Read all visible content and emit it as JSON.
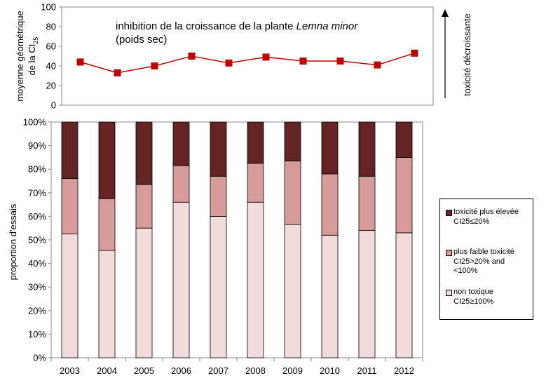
{
  "chart_data": [
    {
      "type": "line",
      "title": "inhibition  de la croissance de la plante",
      "title_italic": "Lemna minor",
      "subtitle": "(poids sec)",
      "ylabel_line1": "moyenne géométrique",
      "ylabel_line2": "de la CI",
      "ylabel_sub": "25",
      "right_label": "toxicité décroissante",
      "ylim": [
        0,
        100
      ],
      "yticks": [
        "0",
        "20",
        "40",
        "60",
        "80",
        "100"
      ],
      "x": [
        "2003",
        "2004",
        "2005",
        "2006",
        "2007",
        "2008",
        "2009",
        "2010",
        "2011",
        "2012"
      ],
      "values": [
        44,
        33,
        40,
        50,
        43,
        49,
        45,
        45,
        41,
        53
      ],
      "color": "#c00000"
    },
    {
      "type": "bar",
      "stacked": true,
      "ylabel": "proportion d'essais",
      "ylim": [
        0,
        100
      ],
      "yticks": [
        "0%",
        "10%",
        "20%",
        "30%",
        "40%",
        "50%",
        "60%",
        "70%",
        "80%",
        "90%",
        "100%"
      ],
      "categories": [
        "2003",
        "2004",
        "2005",
        "2006",
        "2007",
        "2008",
        "2009",
        "2010",
        "2011",
        "2012"
      ],
      "series": [
        {
          "name": "non toxique CI25≥100%",
          "color": "#f2dcdb",
          "values": [
            52.5,
            45.5,
            55,
            66,
            60,
            66,
            56.5,
            52,
            54,
            53
          ]
        },
        {
          "name": "plus faible toxicité CI25>20% and <100%",
          "color": "#d79b9a",
          "values": [
            23.5,
            22,
            18.5,
            15.5,
            17,
            16.5,
            27,
            26,
            23,
            32
          ]
        },
        {
          "name": "toxicité plus élevée CI25≤20%",
          "color": "#632423",
          "values": [
            24,
            32.5,
            26.5,
            18.5,
            23,
            17.5,
            16.5,
            22,
            23,
            15
          ]
        }
      ],
      "legend_position": "right"
    }
  ],
  "legend": {
    "items": [
      {
        "line1": "toxicité plus élevée",
        "line2": "CI25≤20%",
        "color": "#632423"
      },
      {
        "line1": "plus faible toxicité",
        "line2": "CI25>20% and",
        "line3": "<100%",
        "color": "#d79b9a"
      },
      {
        "line1": "non toxique",
        "line2": "CI25≥100%",
        "color": "#f2dcdb"
      }
    ]
  }
}
